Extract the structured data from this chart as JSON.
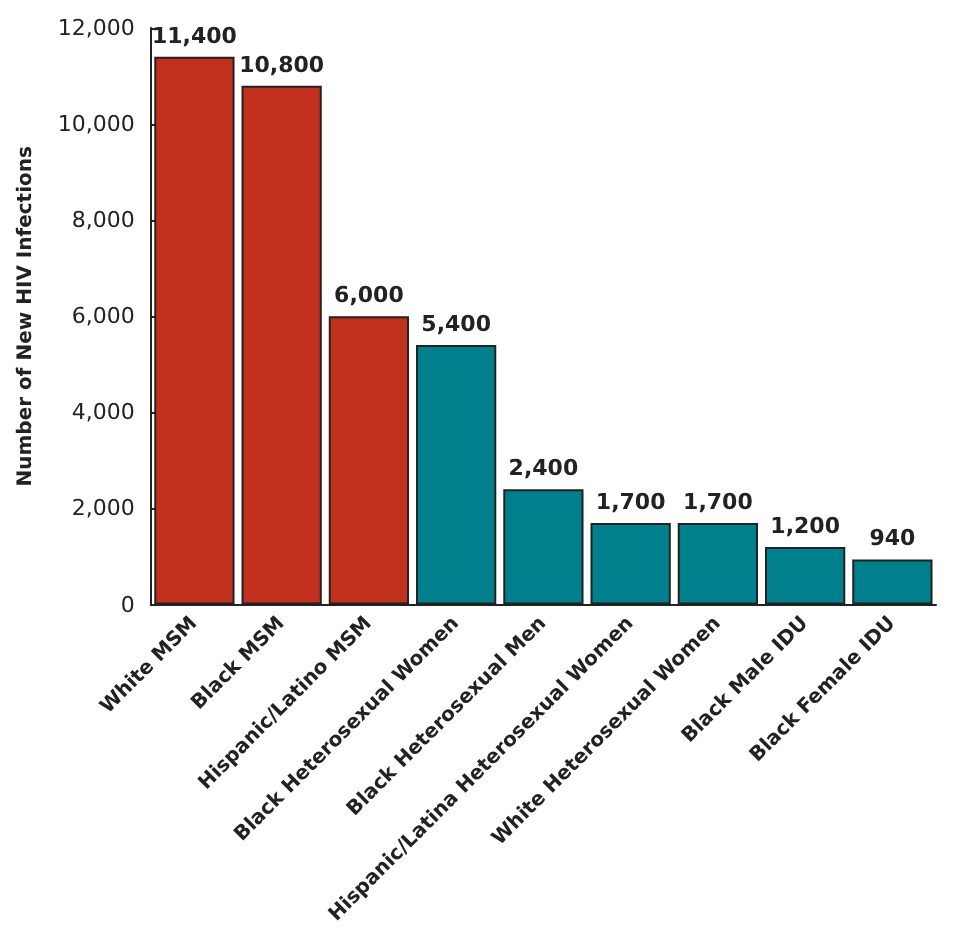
{
  "chart_data": {
    "type": "bar",
    "ylabel": "Number of New HIV Infections",
    "categories": [
      "White MSM",
      "Black MSM",
      "Hispanic/Latino MSM",
      "Black Heterosexual Women",
      "Black Heterosexual Men",
      "Hispanic/Latina Heterosexual Women",
      "White Heterosexual Women",
      "Black Male IDU",
      "Black Female IDU"
    ],
    "values": [
      11400,
      10800,
      6000,
      5400,
      2400,
      1700,
      1700,
      1200,
      940
    ],
    "value_labels": [
      "11,400",
      "10,800",
      "6,000",
      "5,400",
      "2,400",
      "1,700",
      "1,700",
      "1,200",
      "940"
    ],
    "colors": [
      "#c0301c",
      "#c0301c",
      "#c0301c",
      "#007f8c",
      "#007f8c",
      "#007f8c",
      "#007f8c",
      "#007f8c",
      "#007f8c"
    ],
    "ylim": [
      0,
      12000
    ],
    "yticks": [
      {
        "value": 0,
        "label": "0"
      },
      {
        "value": 2000,
        "label": "2,000"
      },
      {
        "value": 4000,
        "label": "4,000"
      },
      {
        "value": 6000,
        "label": "6,000"
      },
      {
        "value": 8000,
        "label": "8,000"
      },
      {
        "value": 10000,
        "label": "10,000"
      },
      {
        "value": 12000,
        "label": "12,000"
      }
    ],
    "grid": false
  }
}
